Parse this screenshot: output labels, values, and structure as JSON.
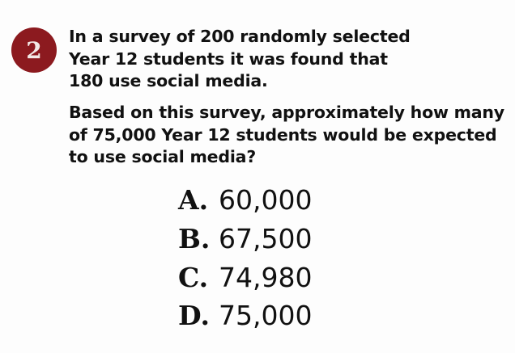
{
  "question": {
    "number": "2",
    "badge_color": "#8c1a1f",
    "stem_lines": [
      "In a survey of 200 randomly selected",
      "Year 12 students it was found that",
      "180 use social media."
    ],
    "prompt_lines": [
      "Based on this survey, approximately how many",
      "of 75,000 Year 12 students would be expected",
      "to use social media?"
    ],
    "options": [
      {
        "letter": "A.",
        "value": "60,000"
      },
      {
        "letter": "B.",
        "value": "67,500"
      },
      {
        "letter": "C.",
        "value": "74,980"
      },
      {
        "letter": "D.",
        "value": "75,000"
      }
    ]
  }
}
